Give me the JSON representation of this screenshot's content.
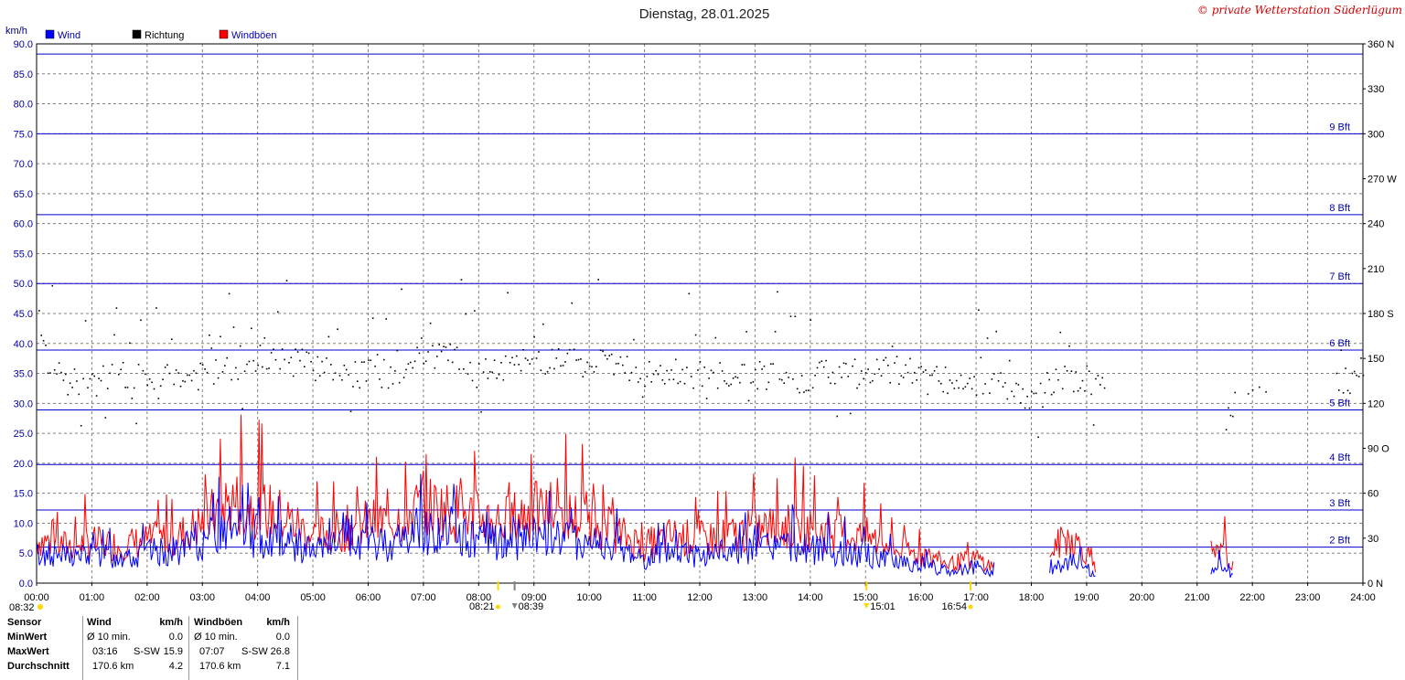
{
  "page": {
    "title": "Dienstag, 28.01.2025",
    "copyright": "© private Wetterstation Süderlügum"
  },
  "chart_data": {
    "type": "line",
    "title": "Dienstag, 28.01.2025",
    "ylabel": "km/h",
    "ylim": [
      0,
      90
    ],
    "y2lim": [
      0,
      360
    ],
    "xlim": [
      "00:00",
      "24:00"
    ],
    "grid": true,
    "legend_position": "top-left",
    "legend": [
      {
        "name": "Wind",
        "color": "#0000ff"
      },
      {
        "name": "Richtung",
        "color": "#000000"
      },
      {
        "name": "Windböen",
        "color": "#ff0000"
      }
    ],
    "y_ticks": [
      "0.0",
      "5.0",
      "10.0",
      "15.0",
      "20.0",
      "25.0",
      "30.0",
      "35.0",
      "40.0",
      "45.0",
      "50.0",
      "55.0",
      "60.0",
      "65.0",
      "70.0",
      "75.0",
      "80.0",
      "85.0",
      "90.0"
    ],
    "y2_ticks": [
      {
        "v": 0,
        "label": "0   N"
      },
      {
        "v": 30,
        "label": "30"
      },
      {
        "v": 60,
        "label": "60"
      },
      {
        "v": 90,
        "label": "90  O"
      },
      {
        "v": 120,
        "label": "120"
      },
      {
        "v": 150,
        "label": "150"
      },
      {
        "v": 180,
        "label": "180  S"
      },
      {
        "v": 210,
        "label": "210"
      },
      {
        "v": 240,
        "label": "240"
      },
      {
        "v": 270,
        "label": "270  W"
      },
      {
        "v": 300,
        "label": "300"
      },
      {
        "v": 330,
        "label": "330"
      },
      {
        "v": 360,
        "label": "360  N"
      }
    ],
    "x_ticks": [
      "00:00",
      "01:00",
      "02:00",
      "03:00",
      "04:00",
      "05:00",
      "06:00",
      "07:00",
      "08:00",
      "09:00",
      "10:00",
      "11:00",
      "12:00",
      "13:00",
      "14:00",
      "15:00",
      "16:00",
      "17:00",
      "18:00",
      "19:00",
      "20:00",
      "21:00",
      "22:00",
      "23:00",
      "24:00"
    ],
    "bft_lines": [
      {
        "label": "2 Bft",
        "kmh": 6
      },
      {
        "label": "3 Bft",
        "kmh": 12.2
      },
      {
        "label": "4 Bft",
        "kmh": 19.8
      },
      {
        "label": "5 Bft",
        "kmh": 28.9
      },
      {
        "label": "6 Bft",
        "kmh": 38.9
      },
      {
        "label": "7 Bft",
        "kmh": 50
      },
      {
        "label": "8 Bft",
        "kmh": 61.5
      },
      {
        "label": "9 Bft",
        "kmh": 75
      },
      {
        "label": "",
        "kmh": 88.3
      }
    ],
    "markers": [
      {
        "label": "08:32",
        "time": "00:00",
        "color": "#ffd700"
      },
      {
        "label": "08:21",
        "time": "08:21",
        "color": "#ffd700"
      },
      {
        "label": "08:39",
        "time": "08:39",
        "color": "#808080"
      },
      {
        "label": "15:01",
        "time": "15:01",
        "color": "#ffd700"
      },
      {
        "label": "16:54",
        "time": "16:54",
        "color": "#ffd700"
      }
    ],
    "series": [
      {
        "name": "Wind",
        "color": "#0000ff",
        "axis": "left",
        "segments": [
          {
            "x": [
              "00:00",
              "00:30",
              "01:00",
              "01:30",
              "02:00",
              "02:30",
              "03:00",
              "03:30",
              "04:00",
              "04:30",
              "05:00",
              "05:30",
              "06:00",
              "06:30",
              "07:00",
              "07:30",
              "08:00",
              "08:30",
              "09:00",
              "09:30",
              "10:00",
              "10:30",
              "11:00",
              "11:30",
              "12:00",
              "12:30",
              "13:00",
              "13:30",
              "14:00",
              "14:30",
              "15:00",
              "15:30",
              "16:00",
              "16:30",
              "17:00",
              "17:20"
            ],
            "y": [
              4.5,
              4.2,
              4.5,
              4.3,
              4.8,
              5.0,
              6.5,
              8.5,
              7.5,
              6.8,
              5.0,
              5.8,
              6.2,
              6.5,
              8.5,
              7.5,
              7.0,
              6.5,
              7.5,
              7.2,
              6.5,
              5.5,
              4.0,
              5.0,
              4.5,
              5.0,
              5.5,
              5.8,
              5.2,
              5.2,
              4.5,
              3.5,
              3.0,
              2.0,
              2.5,
              1.5
            ]
          },
          {
            "x": [
              "18:20",
              "18:40",
              "19:00",
              "19:10"
            ],
            "y": [
              2.5,
              3.5,
              2.5,
              1.0
            ]
          },
          {
            "x": [
              "21:15",
              "21:30",
              "21:40"
            ],
            "y": [
              2.0,
              2.5,
              1.0
            ]
          }
        ]
      },
      {
        "name": "Windböen",
        "color": "#ff0000",
        "axis": "left",
        "segments": [
          {
            "x": [
              "00:00",
              "00:30",
              "01:00",
              "01:30",
              "02:00",
              "02:30",
              "03:00",
              "03:30",
              "04:00",
              "04:30",
              "05:00",
              "05:30",
              "06:00",
              "06:30",
              "07:00",
              "07:30",
              "08:00",
              "08:30",
              "09:00",
              "09:30",
              "10:00",
              "10:30",
              "11:00",
              "11:30",
              "12:00",
              "12:30",
              "13:00",
              "13:30",
              "14:00",
              "14:30",
              "15:00",
              "15:30",
              "16:00",
              "16:30",
              "17:00",
              "17:20"
            ],
            "y": [
              7.0,
              6.0,
              6.5,
              6.0,
              6.8,
              7.2,
              9.5,
              13.0,
              12.0,
              10.5,
              7.5,
              8.5,
              9.5,
              10.0,
              12.5,
              11.5,
              10.5,
              10.0,
              11.5,
              11.0,
              10.0,
              8.0,
              6.0,
              7.5,
              7.0,
              7.5,
              8.5,
              9.0,
              8.5,
              8.0,
              7.5,
              5.5,
              4.5,
              3.0,
              4.0,
              2.5
            ]
          },
          {
            "x": [
              "18:20",
              "18:40",
              "19:00",
              "19:10"
            ],
            "y": [
              5.0,
              7.5,
              5.0,
              2.0
            ]
          },
          {
            "x": [
              "21:15",
              "21:30",
              "21:40"
            ],
            "y": [
              4.0,
              5.0,
              2.0
            ]
          }
        ]
      },
      {
        "name": "Richtung",
        "color": "#000000",
        "axis": "right",
        "type": "scatter",
        "x": [
          "00:00",
          "00:30",
          "01:00",
          "01:30",
          "02:00",
          "02:30",
          "03:00",
          "03:30",
          "04:00",
          "04:30",
          "05:00",
          "05:30",
          "06:00",
          "06:30",
          "07:00",
          "07:30",
          "08:00",
          "08:30",
          "09:00",
          "09:30",
          "10:00",
          "10:30",
          "11:00",
          "11:30",
          "12:00",
          "12:30",
          "13:00",
          "13:30",
          "14:00",
          "14:30",
          "15:00",
          "15:30",
          "16:00",
          "16:30",
          "17:00",
          "17:30",
          "18:00",
          "18:30",
          "19:00",
          "19:30",
          "21:30",
          "22:00",
          "23:00",
          "24:00"
        ],
        "y": [
          160,
          135,
          135,
          138,
          137,
          137,
          140,
          145,
          150,
          150,
          145,
          140,
          140,
          140,
          155,
          150,
          140,
          145,
          150,
          150,
          150,
          145,
          140,
          140,
          140,
          138,
          140,
          137,
          138,
          140,
          140,
          142,
          140,
          135,
          135,
          135,
          120,
          140,
          135,
          135,
          112,
          135,
          135,
          135
        ]
      }
    ]
  },
  "stats": {
    "headers": {
      "sensor": "Sensor",
      "wind": "Wind",
      "wind_unit": "km/h",
      "gust": "Windböen",
      "gust_unit": "km/h"
    },
    "rows": [
      {
        "label": "MinWert",
        "w1": "Ø 10 min.",
        "w2": "",
        "w3": "0.0",
        "g1": "Ø 10 min.",
        "g2": "",
        "g3": "0.0"
      },
      {
        "label": "MaxWert",
        "w1": "03:16",
        "w2": "S-SW",
        "w3": "15.9",
        "g1": "07:07",
        "g2": "S-SW",
        "g3": "26.8"
      },
      {
        "label": "Durchschnitt",
        "w1": "170.6 km",
        "w2": "",
        "w3": "4.2",
        "g1": "170.6 km",
        "g2": "",
        "g3": "7.1"
      }
    ]
  }
}
